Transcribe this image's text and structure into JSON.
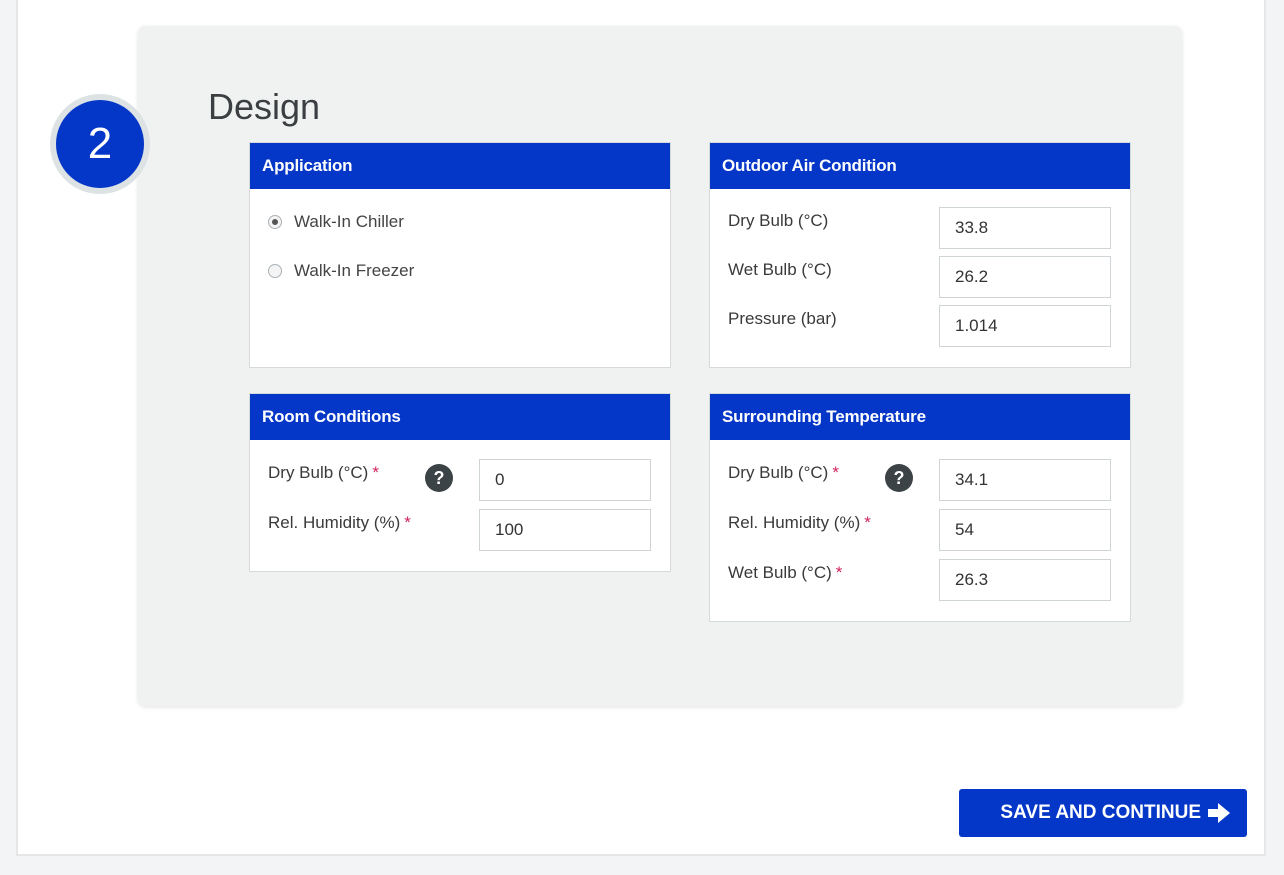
{
  "step": {
    "number": "2",
    "title": "Design"
  },
  "application": {
    "title": "Application",
    "options": [
      {
        "label": "Walk-In Chiller",
        "checked": true
      },
      {
        "label": "Walk-In Freezer",
        "checked": false
      }
    ]
  },
  "outdoor": {
    "title": "Outdoor Air Condition",
    "fields": [
      {
        "label": "Dry Bulb (°C)",
        "value": "33.8"
      },
      {
        "label": "Wet Bulb (°C)",
        "value": "26.2"
      },
      {
        "label": "Pressure (bar)",
        "value": "1.014"
      }
    ]
  },
  "room": {
    "title": "Room Conditions",
    "fields": [
      {
        "label": "Dry Bulb (°C)",
        "required": "*",
        "value": "0"
      },
      {
        "label": "Rel. Humidity (%)",
        "required": "*",
        "value": "100"
      }
    ]
  },
  "surrounding": {
    "title": "Surrounding Temperature",
    "fields": [
      {
        "label": "Dry Bulb (°C)",
        "required": "*",
        "value": "34.1"
      },
      {
        "label": "Rel. Humidity (%)",
        "required": "*",
        "value": "54"
      },
      {
        "label": "Wet Bulb (°C)",
        "required": "*",
        "value": "26.3"
      }
    ]
  },
  "help_icon": {
    "glyph": "?",
    "icon": "question-circle-icon"
  },
  "actions": {
    "save_label": "SAVE AND CONTINUE",
    "save_icon": "arrow-right-icon"
  },
  "colors": {
    "accent": "#0436c8",
    "card_bg": "#f0f2f2",
    "required": "#d0245a"
  }
}
